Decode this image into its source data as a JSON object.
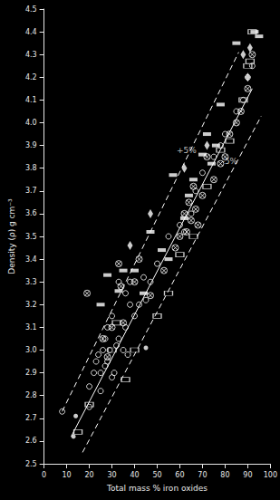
{
  "chart_data": {
    "type": "scatter",
    "x_label": "Total mass % iron oxides",
    "y_label": "Density (ρ) g cm⁻³",
    "xlim": [
      0,
      100
    ],
    "xticks": [
      0,
      10,
      20,
      30,
      40,
      50,
      60,
      70,
      80,
      90,
      100
    ],
    "ylim": [
      2.5,
      4.5
    ],
    "yticks": [
      2.5,
      2.6,
      2.7,
      2.8,
      2.9,
      {
        "value": 3,
        "label": "3.0"
      },
      3.1,
      3.2,
      3.3,
      3.4,
      3.5,
      3.6,
      3.7,
      3.8,
      3.9,
      {
        "value": 4,
        "label": "4.0"
      },
      4.1,
      4.2,
      4.3,
      4.4,
      4.5
    ],
    "grid": false,
    "series": [
      {
        "type": "scatter",
        "marker": "circle",
        "color": "#ffffff",
        "x": [
          8,
          20,
          22,
          23,
          24,
          25,
          26,
          27,
          27,
          28,
          28,
          29,
          30,
          30,
          31,
          32,
          33,
          35,
          36,
          37,
          38,
          38,
          40,
          42,
          44,
          45,
          47,
          50,
          55,
          60,
          62,
          65,
          67,
          70,
          75,
          78,
          80,
          85,
          88,
          90,
          92,
          20,
          25,
          33,
          36
        ],
        "values": [
          2.73,
          2.84,
          2.9,
          2.95,
          2.98,
          2.9,
          3.0,
          2.93,
          3.05,
          2.95,
          3.1,
          3.0,
          2.88,
          3.15,
          2.9,
          3.02,
          3.05,
          3.0,
          3.1,
          2.98,
          3.2,
          3.3,
          3.15,
          3.2,
          3.32,
          3.22,
          3.3,
          3.38,
          3.5,
          3.55,
          3.52,
          3.6,
          3.7,
          3.78,
          3.85,
          3.9,
          3.95,
          4.05,
          4.1,
          4.2,
          4.25,
          2.75,
          2.82,
          3.3,
          3.25
        ]
      },
      {
        "type": "scatter",
        "marker": "filled_circle",
        "color": "#ffffff",
        "x": [
          13,
          14,
          45
        ],
        "values": [
          2.62,
          2.71,
          3.01
        ]
      },
      {
        "type": "scatter",
        "marker": "crossed_circle",
        "color": "#ffffff",
        "x": [
          19,
          26,
          28,
          30,
          33,
          35,
          40,
          42,
          47,
          53,
          58,
          60,
          62,
          63,
          64,
          65,
          66,
          67,
          68,
          70,
          72,
          75,
          78,
          80,
          82,
          85,
          87,
          90,
          92,
          34
        ],
        "values": [
          3.25,
          3.05,
          2.97,
          3.1,
          3.38,
          3.12,
          3.3,
          3.4,
          3.24,
          3.35,
          3.45,
          3.5,
          3.6,
          3.52,
          3.65,
          3.57,
          3.72,
          3.62,
          3.55,
          3.68,
          3.85,
          3.75,
          3.82,
          3.85,
          3.95,
          4.0,
          4.05,
          4.15,
          4.3,
          3.28
        ]
      },
      {
        "type": "scatter",
        "marker": "filled_rect",
        "color": "#ffffff",
        "x": [
          25,
          28,
          33,
          35,
          40,
          47,
          52,
          55,
          57,
          62,
          66,
          70,
          72,
          74,
          76,
          78,
          85,
          93,
          95,
          44,
          64
        ],
        "values": [
          3.2,
          3.33,
          3.26,
          3.35,
          3.35,
          3.52,
          3.44,
          3.4,
          3.77,
          3.58,
          3.75,
          3.86,
          3.95,
          3.82,
          3.9,
          4.08,
          4.35,
          4.4,
          4.38,
          3.25,
          3.68
        ]
      },
      {
        "type": "scatter",
        "marker": "open_rect",
        "color": "#ffffff",
        "x": [
          15,
          20,
          30,
          32,
          36,
          40,
          50,
          55,
          60,
          66,
          72,
          78,
          82,
          88,
          91,
          92,
          90
        ],
        "values": [
          2.64,
          2.76,
          3.0,
          3.12,
          2.87,
          3.0,
          3.15,
          3.25,
          3.42,
          3.5,
          3.72,
          3.88,
          3.92,
          4.1,
          4.27,
          4.4,
          4.25
        ]
      },
      {
        "type": "scatter",
        "marker": "diamond",
        "color": "#ffffff",
        "x": [
          38,
          47,
          62,
          72,
          88,
          90,
          91
        ],
        "values": [
          3.46,
          3.6,
          3.8,
          3.9,
          4.3,
          4.2,
          4.33
        ]
      },
      {
        "type": "line",
        "line_style": "solid",
        "color": "#ffffff",
        "x": [
          12,
          92
        ],
        "values": [
          2.62,
          4.15
        ]
      },
      {
        "type": "line",
        "line_style": "dashed",
        "color": "#ffffff",
        "x": [
          8,
          86
        ],
        "values": [
          2.73,
          4.31
        ]
      },
      {
        "type": "line",
        "line_style": "dashed",
        "color": "#ffffff",
        "x": [
          17,
          96
        ],
        "values": [
          2.55,
          4.03
        ]
      }
    ],
    "annotations": [
      {
        "text": "+5%",
        "x": 63,
        "y": 3.88
      },
      {
        "text": "-5%",
        "x": 82,
        "y": 3.83
      }
    ]
  }
}
